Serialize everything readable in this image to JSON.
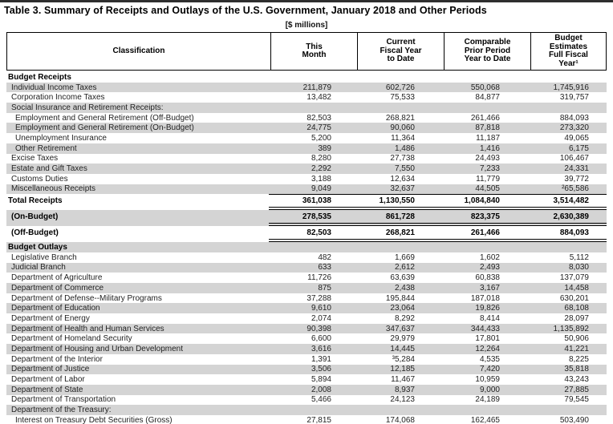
{
  "page": {
    "title": "Table 3. Summary of Receipts and Outlays of the U.S. Government, January 2018 and Other Periods",
    "units_label": "[$ millions]"
  },
  "colors": {
    "row_shade": "#d4d4d4",
    "rule": "#000000",
    "top_bar": "#2e2e2e"
  },
  "table": {
    "columns": [
      "Classification",
      "This\nMonth",
      "Current\nFiscal Year\nto Date",
      "Comparable\nPrior Period\nYear to Date",
      "Budget\nEstimates\nFull Fiscal\nYear¹"
    ],
    "rows": [
      {
        "label": "Budget Receipts",
        "indent": 0,
        "shaded": false,
        "bold": true,
        "values": [
          "",
          "",
          "",
          ""
        ]
      },
      {
        "label": "Individual Income Taxes",
        "indent": 1,
        "shaded": true,
        "bold": false,
        "values": [
          "211,879",
          "602,726",
          "550,068",
          "1,745,916"
        ]
      },
      {
        "label": "Corporation Income Taxes",
        "indent": 1,
        "shaded": false,
        "bold": false,
        "values": [
          "13,482",
          "75,533",
          "84,877",
          "319,757"
        ]
      },
      {
        "label": "Social Insurance and Retirement Receipts:",
        "indent": 1,
        "shaded": true,
        "bold": false,
        "values": [
          "",
          "",
          "",
          ""
        ]
      },
      {
        "label": "Employment and General Retirement (Off-Budget)",
        "indent": 2,
        "shaded": false,
        "bold": false,
        "values": [
          "82,503",
          "268,821",
          "261,466",
          "884,093"
        ]
      },
      {
        "label": "Employment and General Retirement (On-Budget)",
        "indent": 2,
        "shaded": true,
        "bold": false,
        "values": [
          "24,775",
          "90,060",
          "87,818",
          "273,320"
        ]
      },
      {
        "label": "Unemployment Insurance",
        "indent": 2,
        "shaded": false,
        "bold": false,
        "values": [
          "5,200",
          "11,364",
          "11,187",
          "49,065"
        ]
      },
      {
        "label": "Other Retirement",
        "indent": 2,
        "shaded": true,
        "bold": false,
        "values": [
          "389",
          "1,486",
          "1,416",
          "6,175"
        ]
      },
      {
        "label": "Excise Taxes",
        "indent": 1,
        "shaded": false,
        "bold": false,
        "values": [
          "8,280",
          "27,738",
          "24,493",
          "106,467"
        ]
      },
      {
        "label": "Estate and Gift Taxes",
        "indent": 1,
        "shaded": true,
        "bold": false,
        "values": [
          "2,292",
          "7,550",
          "7,233",
          "24,331"
        ]
      },
      {
        "label": "Customs Duties",
        "indent": 1,
        "shaded": false,
        "bold": false,
        "values": [
          "3,188",
          "12,634",
          "11,779",
          "39,772"
        ]
      },
      {
        "label": "Miscellaneous Receipts",
        "indent": 1,
        "shaded": true,
        "bold": false,
        "values": [
          "9,049",
          "32,637",
          "44,505",
          "²65,586"
        ]
      },
      {
        "label": "Total Receipts",
        "indent": 0,
        "shaded": false,
        "bold": true,
        "tall": true,
        "rule_top": "single",
        "rule_bottom": "double",
        "values": [
          "361,038",
          "1,130,550",
          "1,084,840",
          "3,514,482"
        ]
      },
      {
        "label": "(On-Budget)",
        "indent": 1,
        "shaded": true,
        "bold": true,
        "tall": true,
        "rule_bottom": "double",
        "values": [
          "278,535",
          "861,728",
          "823,375",
          "2,630,389"
        ]
      },
      {
        "label": "(Off-Budget)",
        "indent": 1,
        "shaded": false,
        "bold": true,
        "tall": true,
        "rule_bottom": "double",
        "values": [
          "82,503",
          "268,821",
          "261,466",
          "884,093"
        ]
      },
      {
        "label": "Budget Outlays",
        "indent": 0,
        "shaded": true,
        "bold": true,
        "values": [
          "",
          "",
          "",
          ""
        ]
      },
      {
        "label": "Legislative Branch",
        "indent": 1,
        "shaded": false,
        "bold": false,
        "values": [
          "482",
          "1,669",
          "1,602",
          "5,112"
        ]
      },
      {
        "label": "Judicial Branch",
        "indent": 1,
        "shaded": true,
        "bold": false,
        "values": [
          "633",
          "2,612",
          "2,493",
          "8,030"
        ]
      },
      {
        "label": "Department of Agriculture",
        "indent": 1,
        "shaded": false,
        "bold": false,
        "values": [
          "11,726",
          "63,639",
          "60,838",
          "137,079"
        ]
      },
      {
        "label": "Department of Commerce",
        "indent": 1,
        "shaded": true,
        "bold": false,
        "values": [
          "875",
          "2,438",
          "3,167",
          "14,458"
        ]
      },
      {
        "label": "Department of Defense--Military Programs",
        "indent": 1,
        "shaded": false,
        "bold": false,
        "values": [
          "37,288",
          "195,844",
          "187,018",
          "630,201"
        ]
      },
      {
        "label": "Department of Education",
        "indent": 1,
        "shaded": true,
        "bold": false,
        "values": [
          "9,610",
          "23,064",
          "19,826",
          "68,108"
        ]
      },
      {
        "label": "Department of Energy",
        "indent": 1,
        "shaded": false,
        "bold": false,
        "values": [
          "2,074",
          "8,292",
          "8,414",
          "28,097"
        ]
      },
      {
        "label": "Department of Health and Human Services",
        "indent": 1,
        "shaded": true,
        "bold": false,
        "values": [
          "90,398",
          "347,637",
          "344,433",
          "1,135,892"
        ]
      },
      {
        "label": "Department of Homeland Security",
        "indent": 1,
        "shaded": false,
        "bold": false,
        "values": [
          "6,600",
          "29,979",
          "17,801",
          "50,906"
        ]
      },
      {
        "label": "Department of Housing and Urban Development",
        "indent": 1,
        "shaded": true,
        "bold": false,
        "values": [
          "3,616",
          "14,445",
          "12,264",
          "41,221"
        ]
      },
      {
        "label": "Department of the Interior",
        "indent": 1,
        "shaded": false,
        "bold": false,
        "values": [
          "1,391",
          "³5,284",
          "4,535",
          "8,225"
        ]
      },
      {
        "label": "Department of Justice",
        "indent": 1,
        "shaded": true,
        "bold": false,
        "values": [
          "3,506",
          "12,185",
          "7,420",
          "35,818"
        ]
      },
      {
        "label": "Department of Labor",
        "indent": 1,
        "shaded": false,
        "bold": false,
        "values": [
          "5,894",
          "11,467",
          "10,959",
          "43,243"
        ]
      },
      {
        "label": "Department of State",
        "indent": 1,
        "shaded": true,
        "bold": false,
        "values": [
          "2,008",
          "8,937",
          "9,000",
          "27,885"
        ]
      },
      {
        "label": "Department of Transportation",
        "indent": 1,
        "shaded": false,
        "bold": false,
        "values": [
          "5,466",
          "24,123",
          "24,189",
          "79,545"
        ]
      },
      {
        "label": "Department of the Treasury:",
        "indent": 1,
        "shaded": true,
        "bold": false,
        "values": [
          "",
          "",
          "",
          ""
        ]
      },
      {
        "label": "Interest on Treasury Debt Securities (Gross)",
        "indent": 2,
        "shaded": false,
        "bold": false,
        "values": [
          "27,815",
          "174,068",
          "162,465",
          "503,490"
        ]
      },
      {
        "label": "",
        "indent": 2,
        "shaded": true,
        "bold": false,
        "values": [
          "",
          "",
          "",
          ""
        ]
      }
    ]
  }
}
